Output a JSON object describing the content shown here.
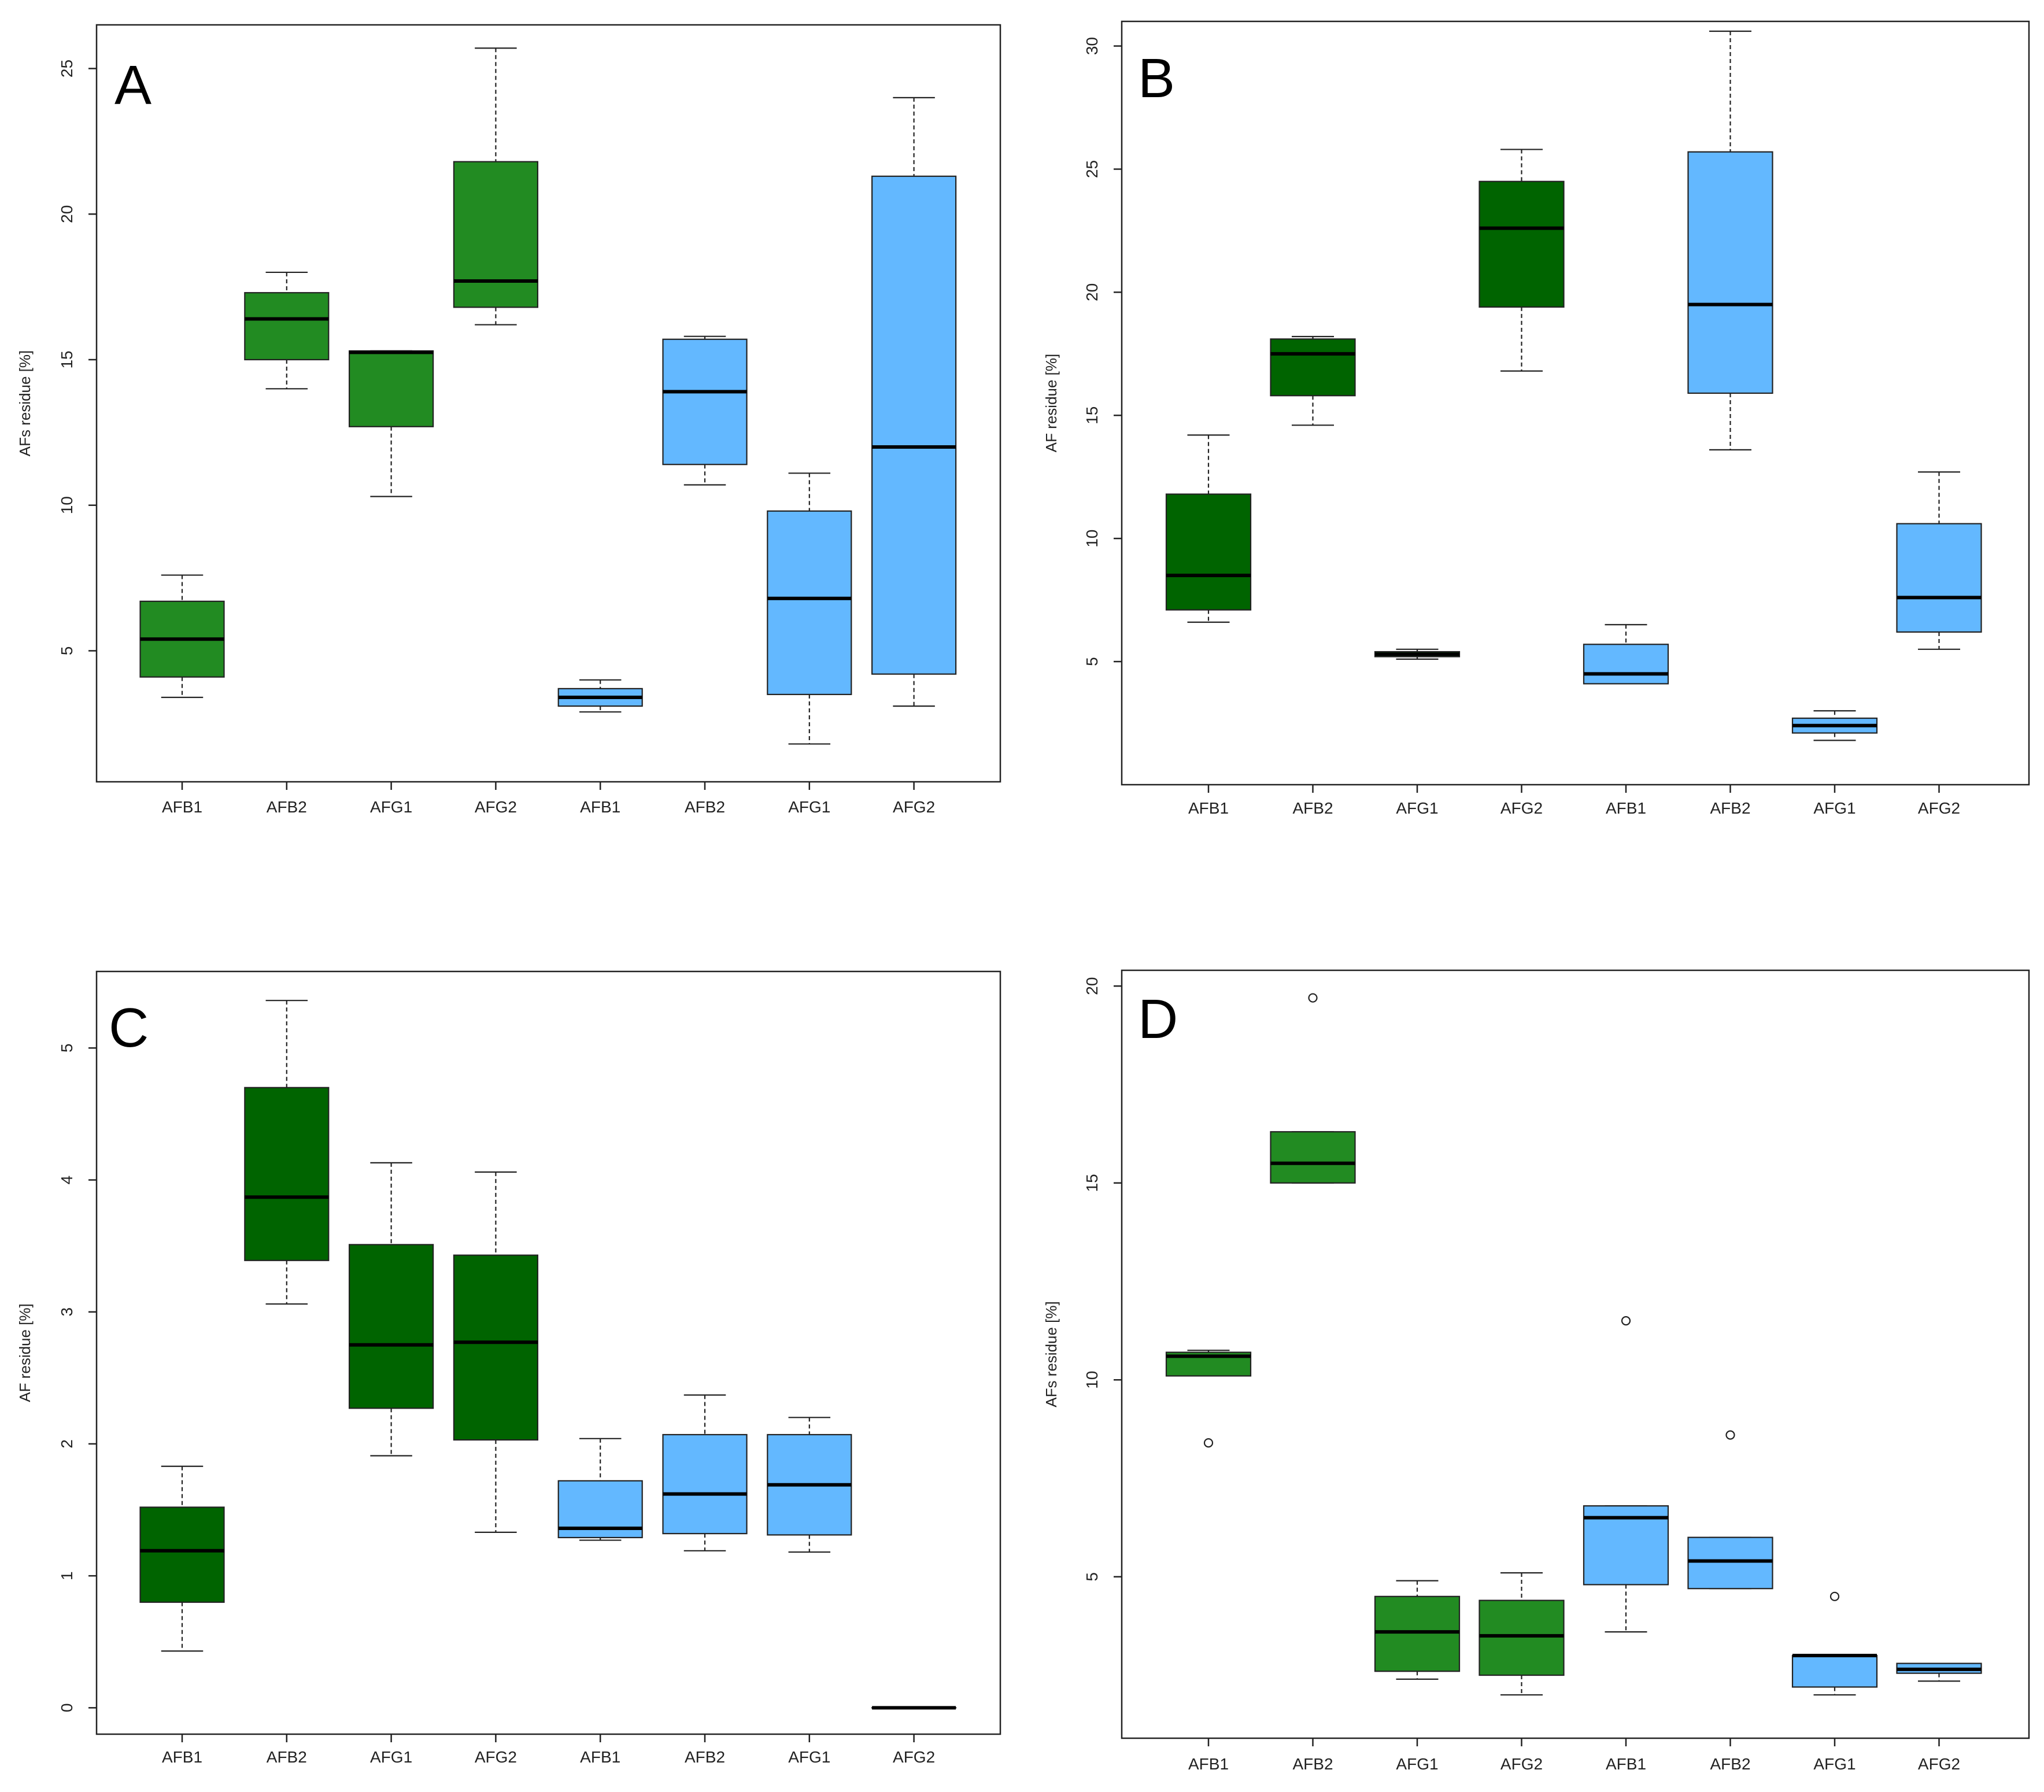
{
  "colors": {
    "green_a": "#228B22",
    "green_b": "#006400",
    "blue": "#63B8FF"
  },
  "chart_data": [
    {
      "type": "box",
      "panel": "A",
      "ylabel": "AFs residue [%]",
      "ylim": [
        0.5,
        26.5
      ],
      "yticks": [
        5,
        10,
        15,
        20,
        25
      ],
      "categories": [
        "AFB1",
        "AFB2",
        "AFG1",
        "AFG2",
        "AFB1",
        "AFB2",
        "AFG1",
        "AFG2"
      ],
      "box_colors": [
        "green_a",
        "green_a",
        "green_a",
        "green_a",
        "blue",
        "blue",
        "blue",
        "blue"
      ],
      "boxes": [
        {
          "min": 3.4,
          "q1": 4.1,
          "median": 5.4,
          "q3": 6.7,
          "max": 7.6
        },
        {
          "min": 14.0,
          "q1": 15.0,
          "median": 16.4,
          "q3": 17.3,
          "max": 18.0
        },
        {
          "min": 10.3,
          "q1": 12.7,
          "median": 15.25,
          "q3": 15.3,
          "max": 15.3
        },
        {
          "min": 16.2,
          "q1": 16.8,
          "median": 17.7,
          "q3": 21.8,
          "max": 25.7
        },
        {
          "min": 2.9,
          "q1": 3.1,
          "median": 3.4,
          "q3": 3.7,
          "max": 4.0
        },
        {
          "min": 10.7,
          "q1": 11.4,
          "median": 13.9,
          "q3": 15.7,
          "max": 15.8
        },
        {
          "min": 1.8,
          "q1": 3.5,
          "median": 6.8,
          "q3": 9.8,
          "max": 11.1
        },
        {
          "min": 3.1,
          "q1": 4.2,
          "median": 12.0,
          "q3": 21.3,
          "max": 24.0
        }
      ]
    },
    {
      "type": "box",
      "panel": "B",
      "ylabel": "AF residue [%]",
      "ylim": [
        0.0,
        31.0
      ],
      "yticks": [
        5,
        10,
        15,
        20,
        25,
        30
      ],
      "categories": [
        "AFB1",
        "AFB2",
        "AFG1",
        "AFG2",
        "AFB1",
        "AFB2",
        "AFG1",
        "AFG2"
      ],
      "box_colors": [
        "green_b",
        "green_b",
        "green_b",
        "green_b",
        "blue",
        "blue",
        "blue",
        "blue"
      ],
      "boxes": [
        {
          "min": 6.6,
          "q1": 7.1,
          "median": 8.5,
          "q3": 11.8,
          "max": 14.2
        },
        {
          "min": 14.6,
          "q1": 15.8,
          "median": 17.5,
          "q3": 18.1,
          "max": 18.2
        },
        {
          "min": 5.1,
          "q1": 5.2,
          "median": 5.3,
          "q3": 5.4,
          "max": 5.5
        },
        {
          "min": 16.8,
          "q1": 19.4,
          "median": 22.6,
          "q3": 24.5,
          "max": 25.8
        },
        {
          "min": 4.1,
          "q1": 4.1,
          "median": 4.5,
          "q3": 5.7,
          "max": 6.5
        },
        {
          "min": 13.6,
          "q1": 15.9,
          "median": 19.5,
          "q3": 25.7,
          "max": 30.6
        },
        {
          "min": 1.8,
          "q1": 2.1,
          "median": 2.4,
          "q3": 2.7,
          "max": 3.0
        },
        {
          "min": 5.5,
          "q1": 6.2,
          "median": 7.6,
          "q3": 10.6,
          "max": 12.7
        }
      ]
    },
    {
      "type": "box",
      "panel": "C",
      "ylabel": "AF residue [%]",
      "ylim": [
        -0.2,
        5.58
      ],
      "yticks": [
        0,
        1,
        2,
        3,
        4,
        5
      ],
      "categories": [
        "AFB1",
        "AFB2",
        "AFG1",
        "AFG2",
        "AFB1",
        "AFB2",
        "AFG1",
        "AFG2"
      ],
      "box_colors": [
        "green_b",
        "green_b",
        "green_b",
        "green_b",
        "blue",
        "blue",
        "blue",
        "blue"
      ],
      "boxes": [
        {
          "min": 0.43,
          "q1": 0.8,
          "median": 1.19,
          "q3": 1.52,
          "max": 1.83
        },
        {
          "min": 3.06,
          "q1": 3.39,
          "median": 3.87,
          "q3": 4.7,
          "max": 5.36
        },
        {
          "min": 1.91,
          "q1": 2.27,
          "median": 2.75,
          "q3": 3.51,
          "max": 4.13
        },
        {
          "min": 1.33,
          "q1": 2.03,
          "median": 2.77,
          "q3": 3.43,
          "max": 4.06
        },
        {
          "min": 1.27,
          "q1": 1.29,
          "median": 1.36,
          "q3": 1.72,
          "max": 2.04
        },
        {
          "min": 1.19,
          "q1": 1.32,
          "median": 1.62,
          "q3": 2.07,
          "max": 2.37
        },
        {
          "min": 1.18,
          "q1": 1.31,
          "median": 1.69,
          "q3": 2.07,
          "max": 2.2
        },
        {
          "min": 0.0,
          "q1": 0.0,
          "median": 0.0,
          "q3": 0.0,
          "max": 0.0
        }
      ]
    },
    {
      "type": "box",
      "panel": "D",
      "ylabel": "AFs residue [%]",
      "ylim": [
        0.9,
        20.4
      ],
      "yticks": [
        5,
        10,
        15,
        20
      ],
      "categories": [
        "AFB1",
        "AFB2",
        "AFG1",
        "AFG2",
        "AFB1",
        "AFB2",
        "AFG1",
        "AFG2"
      ],
      "box_colors": [
        "green_a",
        "green_a",
        "green_a",
        "green_a",
        "blue",
        "blue",
        "blue",
        "blue"
      ],
      "boxes": [
        {
          "min": 10.1,
          "q1": 10.1,
          "median": 10.6,
          "q3": 10.7,
          "max": 10.75,
          "outliers": [
            8.4
          ]
        },
        {
          "min": 15.0,
          "q1": 15.0,
          "median": 15.5,
          "q3": 16.3,
          "max": 16.3,
          "outliers": [
            19.7
          ]
        },
        {
          "min": 2.4,
          "q1": 2.6,
          "median": 3.6,
          "q3": 4.5,
          "max": 4.9
        },
        {
          "min": 2.0,
          "q1": 2.5,
          "median": 3.5,
          "q3": 4.4,
          "max": 5.1
        },
        {
          "min": 3.6,
          "q1": 4.8,
          "median": 6.5,
          "q3": 6.8,
          "max": 6.8,
          "outliers": [
            11.5
          ]
        },
        {
          "min": 4.7,
          "q1": 4.7,
          "median": 5.4,
          "q3": 6.0,
          "max": 6.0,
          "outliers": [
            8.6
          ]
        },
        {
          "min": 2.0,
          "q1": 2.2,
          "median": 3.0,
          "q3": 3.0,
          "max": 3.0,
          "outliers": [
            4.5
          ]
        },
        {
          "min": 2.35,
          "q1": 2.55,
          "median": 2.65,
          "q3": 2.8,
          "max": 2.8
        }
      ]
    }
  ]
}
